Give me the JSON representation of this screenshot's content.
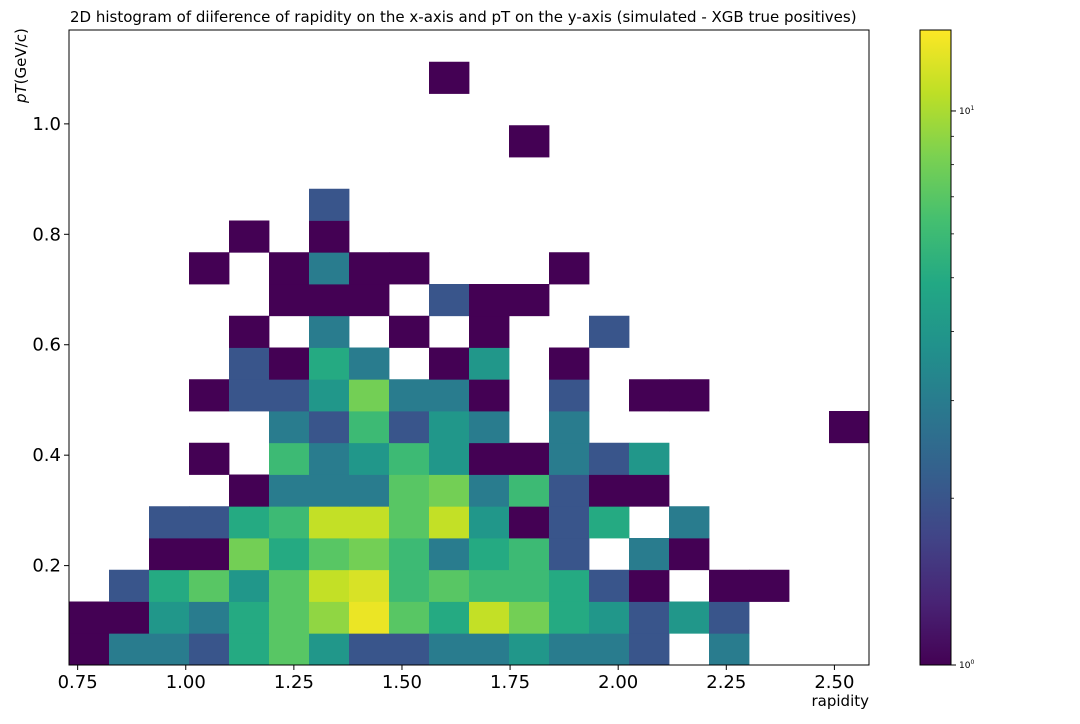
{
  "chart_data": {
    "type": "heatmap",
    "title": "2D histogram of diiference of rapidity on the x-axis and pT on the y-axis (simulated -  XGB true positives)",
    "xlabel": "rapidity",
    "ylabel_italic": "pT",
    "ylabel_unit": "(GeV/c)",
    "xlim": [
      0.73,
      2.58
    ],
    "ylim": [
      0.02,
      1.17
    ],
    "x_bin_edges_start": 0.73,
    "x_bin_width": 0.0925,
    "y_bin_edges_start": 0.02,
    "y_bin_width": 0.0575,
    "x_ticks": [
      {
        "value": 0.75,
        "label": "0.75"
      },
      {
        "value": 1.0,
        "label": "1.00"
      },
      {
        "value": 1.25,
        "label": "1.25"
      },
      {
        "value": 1.5,
        "label": "1.50"
      },
      {
        "value": 1.75,
        "label": "1.75"
      },
      {
        "value": 2.0,
        "label": "2.00"
      },
      {
        "value": 2.25,
        "label": "2.25"
      },
      {
        "value": 2.5,
        "label": "2.50"
      }
    ],
    "y_ticks": [
      {
        "value": 0.2,
        "label": "0.2"
      },
      {
        "value": 0.4,
        "label": "0.4"
      },
      {
        "value": 0.6,
        "label": "0.6"
      },
      {
        "value": 0.8,
        "label": "0.8"
      },
      {
        "value": 1.0,
        "label": "1.0"
      }
    ],
    "colorbar": {
      "scale": "log",
      "colormap": "viridis",
      "vmin": 1,
      "vmax": 14,
      "labeled_ticks": [
        {
          "value": 1,
          "label_base": "10",
          "label_exp": "0"
        },
        {
          "value": 10,
          "label_base": "10",
          "label_exp": "1"
        }
      ]
    },
    "grid": false,
    "counts_note": "rows[r][c]: r = y-bin from bottom, c = x-bin from left; 0 = empty bin",
    "counts": [
      [
        1,
        3,
        3,
        2,
        5,
        7,
        4,
        2,
        2,
        3,
        3,
        4,
        3,
        3,
        2,
        0,
        3,
        0,
        0,
        0
      ],
      [
        1,
        1,
        4,
        3,
        5,
        7,
        9,
        13,
        7,
        5,
        11,
        8,
        5,
        4,
        2,
        4,
        2,
        0,
        0,
        0
      ],
      [
        0,
        2,
        5,
        7,
        4,
        7,
        11,
        12,
        6,
        7,
        6,
        6,
        5,
        2,
        1,
        0,
        1,
        1,
        0,
        0
      ],
      [
        0,
        0,
        1,
        1,
        8,
        5,
        7,
        8,
        6,
        3,
        5,
        6,
        2,
        0,
        3,
        1,
        0,
        0,
        0,
        0
      ],
      [
        0,
        0,
        2,
        2,
        5,
        6,
        11,
        11,
        7,
        11,
        4,
        1,
        2,
        5,
        0,
        3,
        0,
        0,
        0,
        0
      ],
      [
        0,
        0,
        0,
        0,
        1,
        3,
        3,
        3,
        7,
        8,
        3,
        6,
        2,
        1,
        1,
        0,
        0,
        0,
        0,
        0
      ],
      [
        0,
        0,
        0,
        1,
        0,
        6,
        3,
        4,
        6,
        4,
        1,
        1,
        3,
        2,
        4,
        0,
        0,
        0,
        0,
        0
      ],
      [
        0,
        0,
        0,
        0,
        0,
        3,
        2,
        6,
        2,
        4,
        3,
        0,
        3,
        0,
        0,
        0,
        0,
        0,
        0,
        1
      ],
      [
        0,
        0,
        0,
        1,
        2,
        2,
        4,
        8,
        3,
        3,
        1,
        0,
        2,
        0,
        1,
        1,
        0,
        0,
        0,
        0
      ],
      [
        0,
        0,
        0,
        0,
        2,
        1,
        5,
        3,
        0,
        1,
        4,
        0,
        1,
        0,
        0,
        0,
        0,
        0,
        0,
        0
      ],
      [
        0,
        0,
        0,
        0,
        1,
        0,
        3,
        0,
        1,
        0,
        1,
        0,
        0,
        2,
        0,
        0,
        0,
        0,
        0,
        0
      ],
      [
        0,
        0,
        0,
        0,
        0,
        1,
        1,
        1,
        0,
        2,
        1,
        1,
        0,
        0,
        0,
        0,
        0,
        0,
        0,
        0
      ],
      [
        0,
        0,
        0,
        1,
        0,
        1,
        3,
        1,
        1,
        0,
        0,
        0,
        1,
        0,
        0,
        0,
        0,
        0,
        0,
        0
      ],
      [
        0,
        0,
        0,
        0,
        1,
        0,
        1,
        0,
        0,
        0,
        0,
        0,
        0,
        0,
        0,
        0,
        0,
        0,
        0,
        0
      ],
      [
        0,
        0,
        0,
        0,
        0,
        0,
        2,
        0,
        0,
        0,
        0,
        0,
        0,
        0,
        0,
        0,
        0,
        0,
        0,
        0
      ],
      [
        0,
        0,
        0,
        0,
        0,
        0,
        0,
        0,
        0,
        0,
        0,
        0,
        0,
        0,
        0,
        0,
        0,
        0,
        0,
        0
      ],
      [
        0,
        0,
        0,
        0,
        0,
        0,
        0,
        0,
        0,
        0,
        0,
        1,
        0,
        0,
        0,
        0,
        0,
        0,
        0,
        0
      ],
      [
        0,
        0,
        0,
        0,
        0,
        0,
        0,
        0,
        0,
        0,
        0,
        0,
        0,
        0,
        0,
        0,
        0,
        0,
        0,
        0
      ],
      [
        0,
        0,
        0,
        0,
        0,
        0,
        0,
        0,
        0,
        1,
        0,
        0,
        0,
        0,
        0,
        0,
        0,
        0,
        0,
        0
      ],
      [
        0,
        0,
        0,
        0,
        0,
        0,
        0,
        0,
        0,
        0,
        0,
        0,
        0,
        0,
        0,
        0,
        0,
        0,
        0,
        0
      ]
    ]
  }
}
